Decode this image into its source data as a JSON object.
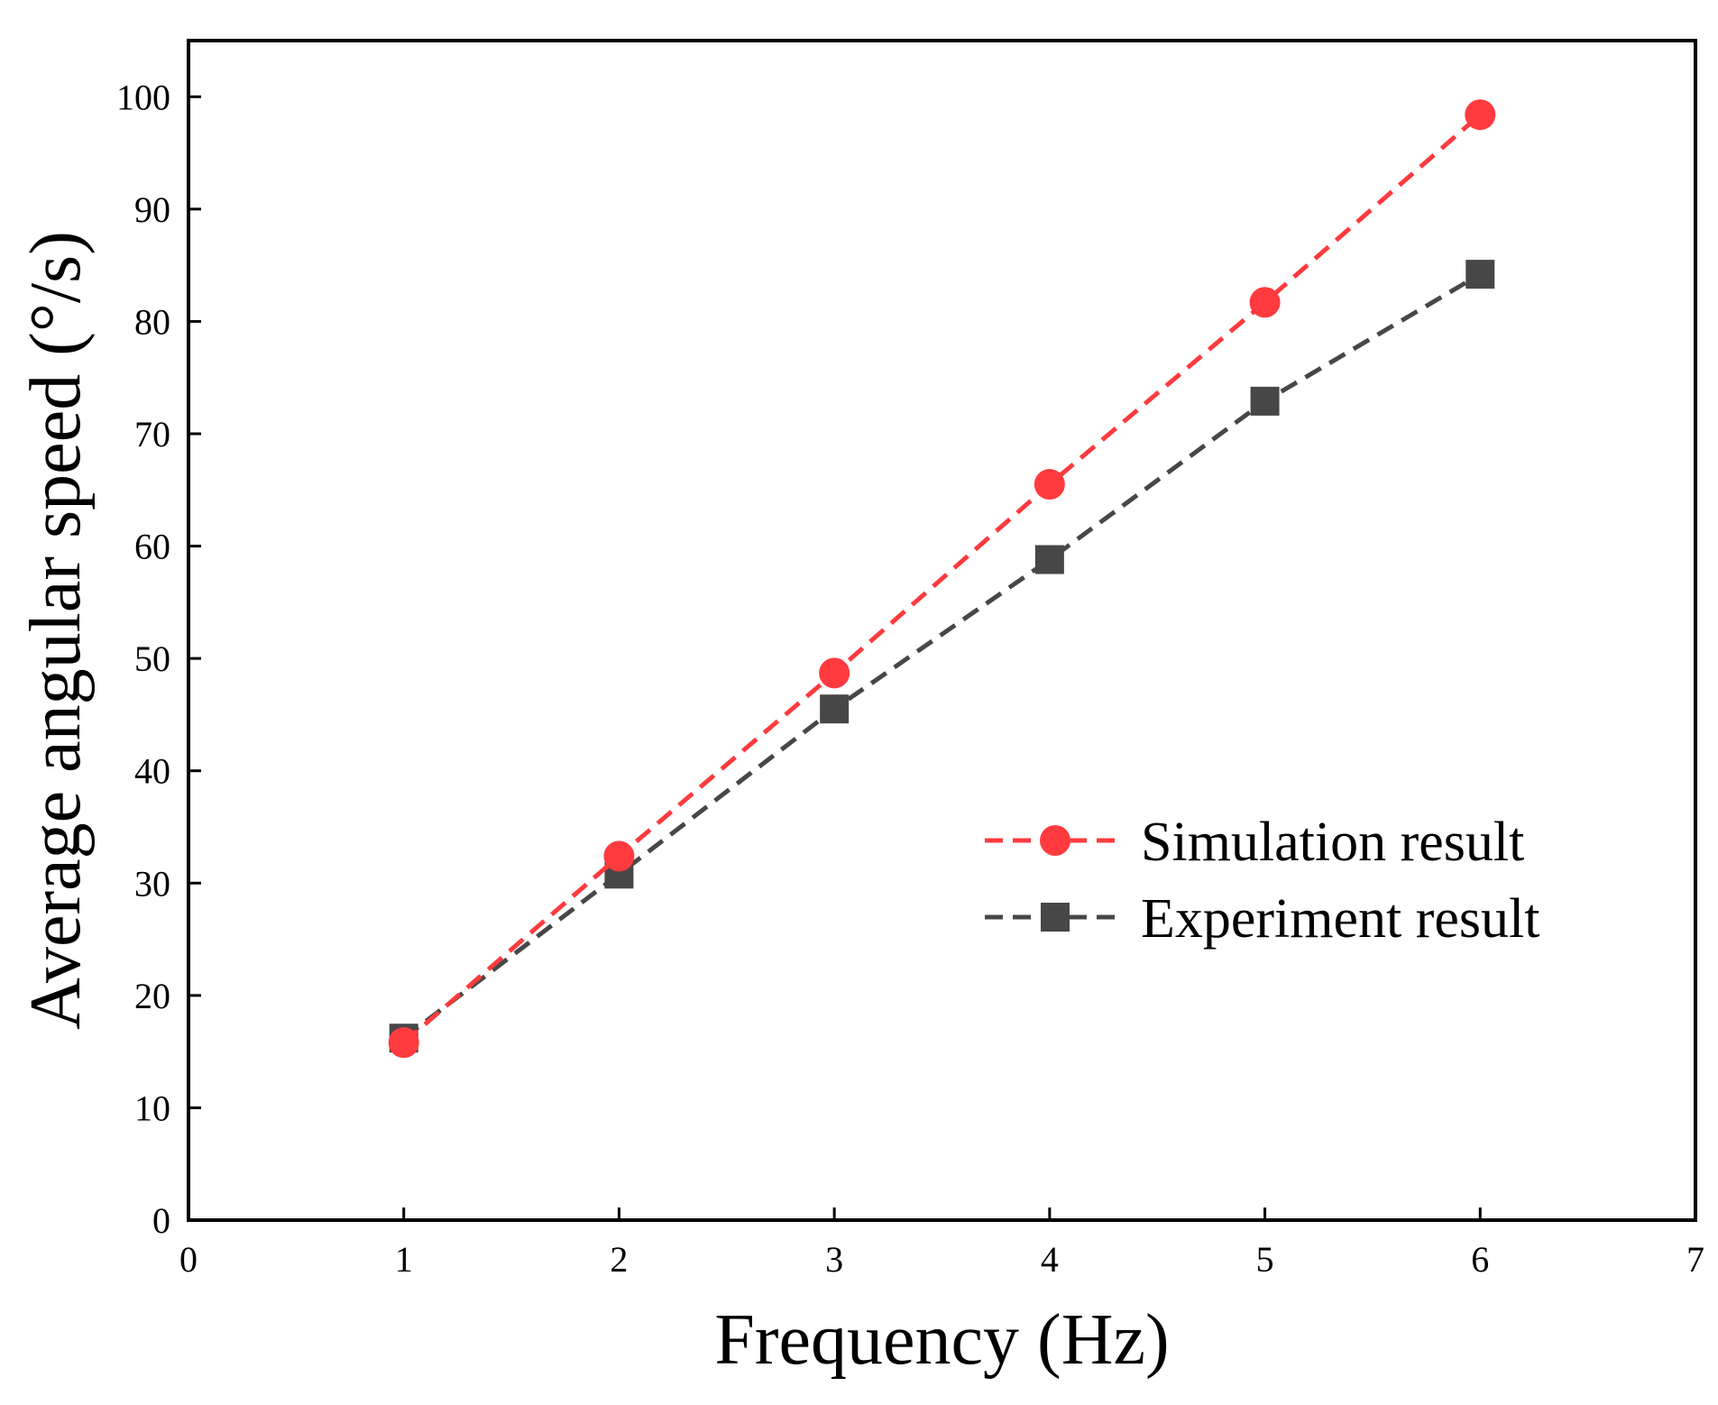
{
  "chart_data": {
    "type": "line",
    "title": "",
    "xlabel": "Frequency (Hz)",
    "ylabel": "Average angular speed (°/s)",
    "xlim": [
      0,
      7
    ],
    "ylim": [
      0,
      105
    ],
    "xticks": [
      0,
      1,
      2,
      3,
      4,
      5,
      6,
      7
    ],
    "yticks": [
      0,
      10,
      20,
      30,
      40,
      50,
      60,
      70,
      80,
      90,
      100
    ],
    "grid": false,
    "legend_position": "center-right",
    "x": [
      1,
      2,
      3,
      4,
      5,
      6
    ],
    "series": [
      {
        "name": "Simulation result",
        "values": [
          15.8,
          32.4,
          48.7,
          65.5,
          81.7,
          98.4
        ],
        "color": "#ff3b3f",
        "marker": "circle",
        "line_style": "dashed"
      },
      {
        "name": "Experiment result",
        "values": [
          16.2,
          30.8,
          45.5,
          58.8,
          72.9,
          84.2
        ],
        "color": "#474747",
        "marker": "square",
        "line_style": "dashed"
      }
    ]
  }
}
